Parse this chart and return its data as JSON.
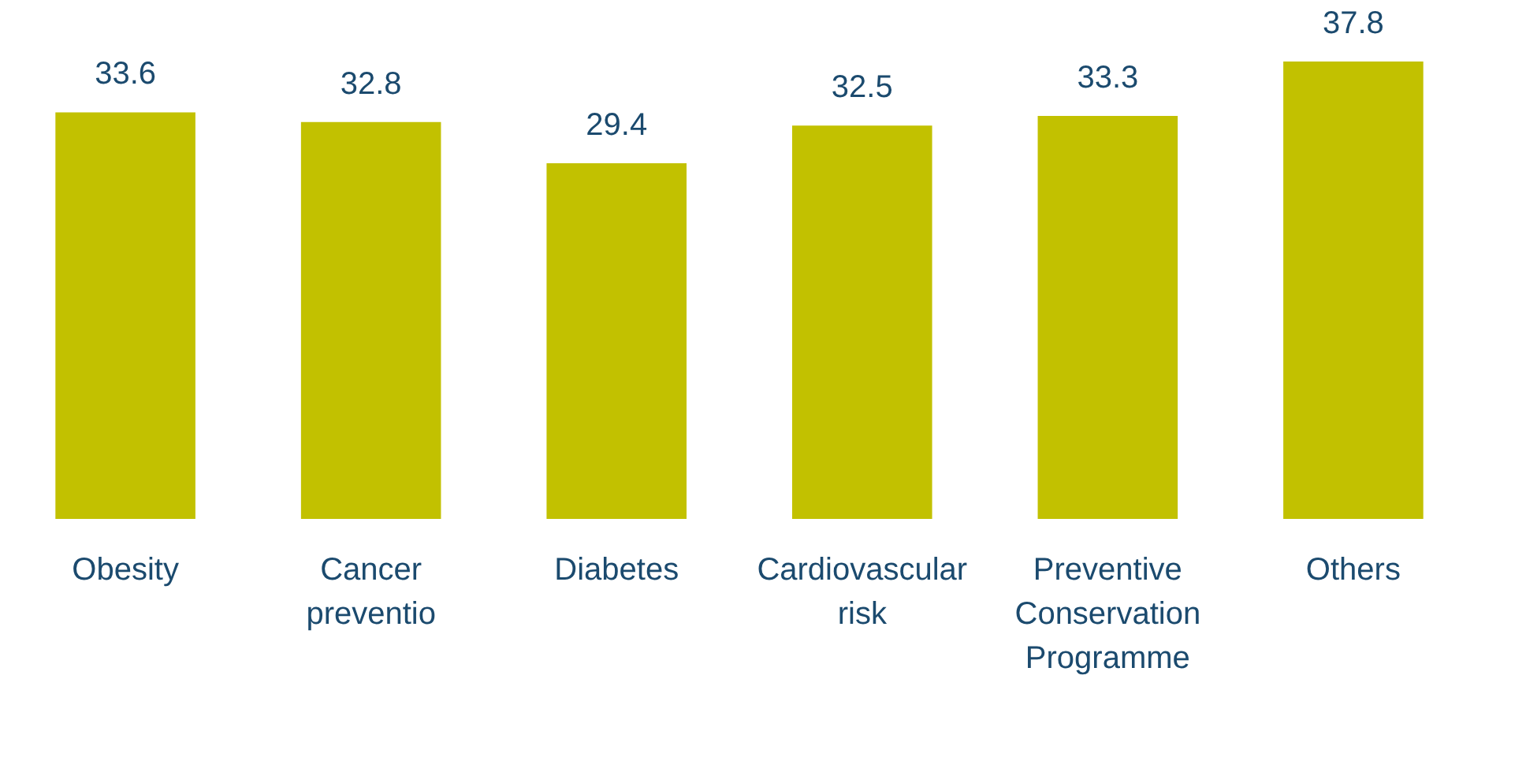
{
  "chart_data": {
    "type": "bar",
    "categories": [
      "Obesity",
      "Cancer preventio",
      "Diabetes",
      "Cardiovascular risk",
      "Preventive Conservation Programme",
      "Others"
    ],
    "values": [
      33.6,
      32.8,
      29.4,
      32.5,
      33.3,
      37.8
    ],
    "color": "#c2c100",
    "data_labels": true
  }
}
